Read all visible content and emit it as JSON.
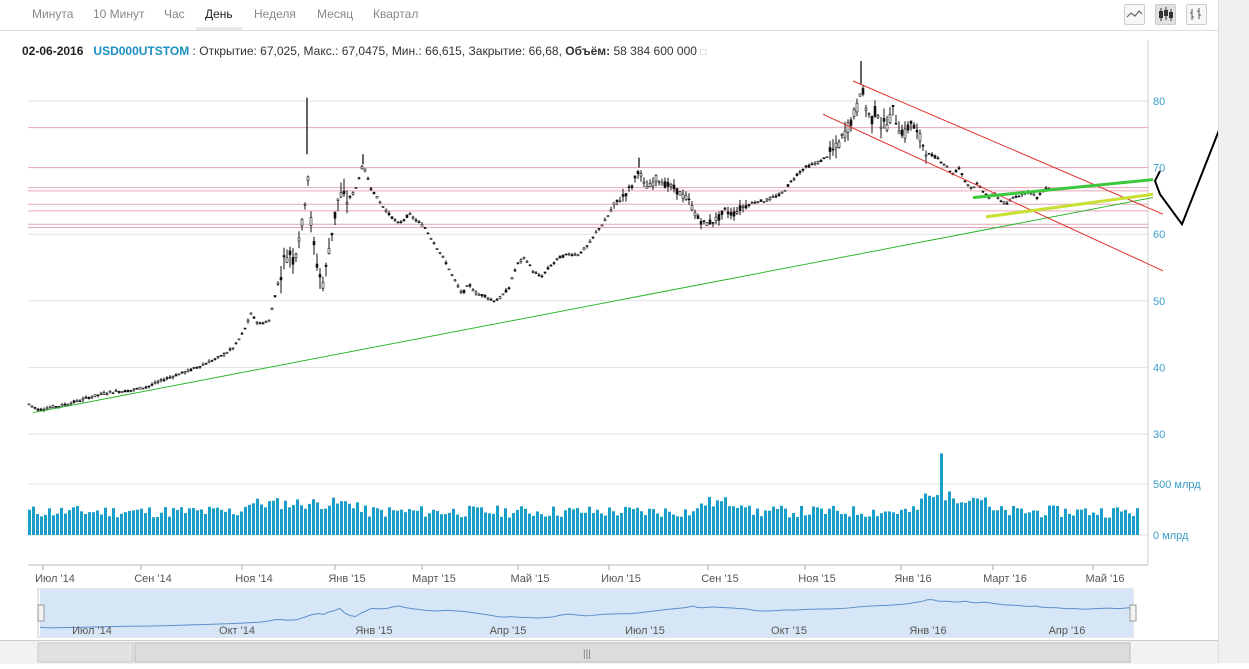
{
  "toolbar": {
    "timeframes": [
      "Минута",
      "10 Минут",
      "Час",
      "День",
      "Неделя",
      "Месяц",
      "Квартал"
    ],
    "active": "День",
    "chart_types": [
      "line-chart-icon",
      "candlestick-icon",
      "ohlc-bars-icon"
    ]
  },
  "info": {
    "date": "02-06-2016",
    "ticker": "USD000UTSTOM",
    "sep": " : ",
    "open_label": "Открытие:",
    "open": "67,025",
    "high_label": "Макс.:",
    "high": "67,0475",
    "low_label": "Мин.:",
    "low": "66,615",
    "close_label": "Закрытие:",
    "close": "66,68",
    "volume_label": "Объём:",
    "volume": "58 384 600 000"
  },
  "colors": {
    "candle": "#111111",
    "volume": "#1a9fc9",
    "trend_green": "#2db82d",
    "channel_red": "#e03030",
    "level_line": "#e6a8b6",
    "navigator_fill": "#d7e6f6",
    "navigator_line": "#5b8fc9"
  },
  "chart_data": {
    "type": "candlestick",
    "y_axis": {
      "ticks": [
        30,
        40,
        50,
        60,
        70,
        80
      ],
      "min": 27,
      "max": 88
    },
    "volume_axis": {
      "ticks": [
        "500 млрд",
        "0 млрд"
      ],
      "values": [
        500,
        0
      ]
    },
    "x_axis": {
      "labels": [
        "Июл '14",
        "Сен '14",
        "Ноя '14",
        "Янв '15",
        "Март '15",
        "Май '15",
        "Июл '15",
        "Сен '15",
        "Ноя '15",
        "Янв '16",
        "Март '16",
        "Май '16"
      ]
    },
    "navigator": {
      "labels": [
        "Июл '14",
        "Окт '14",
        "Янв '15",
        "Апр '15",
        "Июл '15",
        "Окт '15",
        "Янв '16",
        "Апр '16"
      ]
    },
    "price_path": [
      [
        0,
        34.5
      ],
      [
        10,
        33.6
      ],
      [
        20,
        34.0
      ],
      [
        30,
        34.2
      ],
      [
        45,
        34.8
      ],
      [
        60,
        35.5
      ],
      [
        80,
        36.3
      ],
      [
        100,
        36.5
      ],
      [
        120,
        37.2
      ],
      [
        140,
        38.5
      ],
      [
        160,
        39.5
      ],
      [
        175,
        40.5
      ],
      [
        190,
        41.5
      ],
      [
        205,
        43.0
      ],
      [
        215,
        45.5
      ],
      [
        222,
        48.0
      ],
      [
        230,
        46.5
      ],
      [
        240,
        47.0
      ],
      [
        248,
        52.0
      ],
      [
        255,
        56.0
      ],
      [
        260,
        57.5
      ],
      [
        265,
        56.0
      ],
      [
        270,
        60.0
      ],
      [
        275,
        62.0
      ],
      [
        278,
        72.0
      ],
      [
        281,
        63.0
      ],
      [
        285,
        58.0
      ],
      [
        290,
        54.0
      ],
      [
        295,
        52.5
      ],
      [
        300,
        58.0
      ],
      [
        305,
        62.0
      ],
      [
        310,
        66.0
      ],
      [
        318,
        65.0
      ],
      [
        326,
        66.5
      ],
      [
        334,
        70.5
      ],
      [
        342,
        67.0
      ],
      [
        350,
        65.0
      ],
      [
        360,
        63.0
      ],
      [
        370,
        61.5
      ],
      [
        380,
        63.0
      ],
      [
        388,
        62.0
      ],
      [
        396,
        61.0
      ],
      [
        406,
        58.5
      ],
      [
        416,
        56.0
      ],
      [
        426,
        53.0
      ],
      [
        433,
        51.0
      ],
      [
        440,
        52.5
      ],
      [
        448,
        51.0
      ],
      [
        456,
        50.8
      ],
      [
        464,
        50.0
      ],
      [
        472,
        50.5
      ],
      [
        480,
        52.0
      ],
      [
        488,
        55.5
      ],
      [
        496,
        56.5
      ],
      [
        504,
        54.5
      ],
      [
        512,
        53.5
      ],
      [
        520,
        55.0
      ],
      [
        530,
        56.5
      ],
      [
        540,
        57.0
      ],
      [
        550,
        57.0
      ],
      [
        560,
        58.5
      ],
      [
        568,
        60.5
      ],
      [
        576,
        62.0
      ],
      [
        586,
        64.5
      ],
      [
        596,
        66.0
      ],
      [
        604,
        67.5
      ],
      [
        610,
        70.0
      ],
      [
        614,
        67.5
      ],
      [
        620,
        67.0
      ],
      [
        628,
        68.5
      ],
      [
        636,
        67.5
      ],
      [
        644,
        67.0
      ],
      [
        652,
        66.0
      ],
      [
        660,
        65.0
      ],
      [
        668,
        62.5
      ],
      [
        676,
        61.5
      ],
      [
        684,
        62.0
      ],
      [
        690,
        62.5
      ],
      [
        696,
        63.5
      ],
      [
        704,
        63.0
      ],
      [
        712,
        64.0
      ],
      [
        720,
        64.5
      ],
      [
        728,
        65.0
      ],
      [
        736,
        65.0
      ],
      [
        744,
        65.5
      ],
      [
        752,
        66.0
      ],
      [
        760,
        67.5
      ],
      [
        768,
        69.0
      ],
      [
        776,
        70.0
      ],
      [
        784,
        70.5
      ],
      [
        792,
        71.0
      ],
      [
        800,
        72.0
      ],
      [
        808,
        73.0
      ],
      [
        815,
        75.0
      ],
      [
        822,
        77.0
      ],
      [
        828,
        79.0
      ],
      [
        832,
        82.5
      ],
      [
        836,
        79.5
      ],
      [
        842,
        77.0
      ],
      [
        848,
        79.0
      ],
      [
        852,
        76.5
      ],
      [
        858,
        76.5
      ],
      [
        864,
        78.5
      ],
      [
        870,
        76.0
      ],
      [
        876,
        75.0
      ],
      [
        882,
        77.0
      ],
      [
        888,
        75.0
      ],
      [
        894,
        73.5
      ],
      [
        900,
        72.0
      ],
      [
        908,
        71.5
      ],
      [
        916,
        70.5
      ],
      [
        924,
        69.0
      ],
      [
        930,
        70.0
      ],
      [
        936,
        68.0
      ],
      [
        942,
        67.0
      ],
      [
        948,
        67.5
      ],
      [
        954,
        66.5
      ],
      [
        960,
        65.5
      ],
      [
        966,
        66.0
      ],
      [
        972,
        65.0
      ],
      [
        978,
        64.5
      ],
      [
        984,
        65.5
      ],
      [
        992,
        66.0
      ],
      [
        1000,
        66.5
      ],
      [
        1008,
        65.5
      ],
      [
        1014,
        66.5
      ],
      [
        1020,
        67.0
      ]
    ],
    "spikes": [
      [
        278,
        80.5
      ],
      [
        832,
        86.0
      ],
      [
        334,
        72.0
      ],
      [
        610,
        71.5
      ]
    ],
    "annotations": {
      "support_line": {
        "from": [
          5,
          33.2
        ],
        "to": [
          1125,
          65.5
        ]
      },
      "levels": [
        70.0,
        67.0,
        66.5,
        64.5,
        63.5,
        61.5,
        61.0,
        76.0
      ],
      "channel_upper": {
        "from": [
          825,
          83.0
        ],
        "to": [
          1135,
          63.0
        ]
      },
      "channel_lower": {
        "from": [
          795,
          78.0
        ],
        "to": [
          1135,
          54.5
        ]
      },
      "wedge_upper": {
        "from": [
          945,
          65.5
        ],
        "to": [
          1125,
          68.2
        ]
      },
      "wedge_lower": {
        "from": [
          958,
          62.6
        ],
        "to": [
          1125,
          66.0
        ]
      },
      "forecast": [
        [
          1160,
          69.5
        ],
        [
          1155,
          68.0
        ],
        [
          1160,
          66.0
        ],
        [
          1182,
          61.5
        ],
        [
          1220,
          76.0
        ]
      ]
    }
  }
}
